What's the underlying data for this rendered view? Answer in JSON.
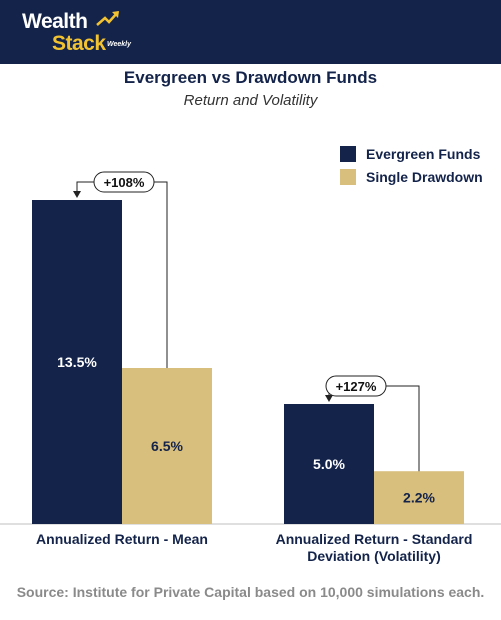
{
  "brand": {
    "line1": "Wealth",
    "line2": "Stack",
    "tag": "Weekly",
    "header_color": "#13234a",
    "accent": "#f2c230"
  },
  "chart_data": {
    "type": "bar",
    "title": "Evergreen vs Drawdown Funds",
    "subtitle": "Return and Volatility",
    "categories": [
      "Annualized Return - Mean",
      "Annualized Return - Standard Deviation (Volatility)"
    ],
    "category_lines": [
      [
        "Annualized Return - Mean"
      ],
      [
        "Annualized Return - Standard",
        "Deviation (Volatility)"
      ]
    ],
    "series": [
      {
        "name": "Evergreen Funds",
        "values": [
          13.5,
          5.0
        ],
        "labels": [
          "13.5%",
          "5.0%"
        ],
        "color": "#13234a"
      },
      {
        "name": "Single Drawdown",
        "values": [
          6.5,
          2.2
        ],
        "labels": [
          "6.5%",
          "2.2%"
        ],
        "color": "#d8bf7e"
      }
    ],
    "annotations": [
      "+108%",
      "+127%"
    ],
    "ylim": [
      0,
      14.5
    ],
    "legend": "top-right",
    "grid": false
  },
  "source": "Source: Institute for Private Capital based on 10,000 simulations each."
}
